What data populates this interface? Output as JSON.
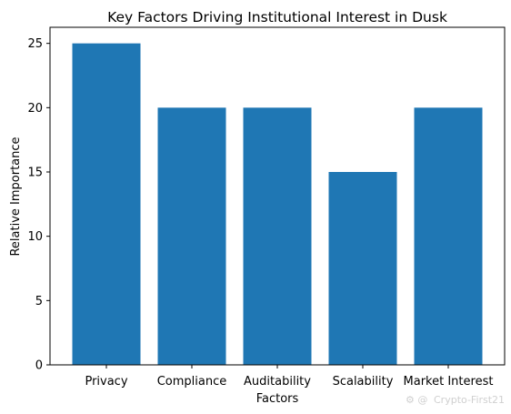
{
  "chart_data": {
    "type": "bar",
    "title": "Key Factors Driving Institutional Interest in Dusk",
    "xlabel": "Factors",
    "ylabel": "Relative Importance",
    "categories": [
      "Privacy",
      "Compliance",
      "Auditability",
      "Scalability",
      "Market Interest"
    ],
    "values": [
      25,
      20,
      20,
      15,
      20
    ],
    "ylim": [
      0,
      26.25
    ],
    "yticks": [
      0,
      5,
      10,
      15,
      20,
      25
    ],
    "grid": false,
    "legend": "none",
    "bar_color": "#1f77b4"
  },
  "watermark": "Crypto-First21"
}
